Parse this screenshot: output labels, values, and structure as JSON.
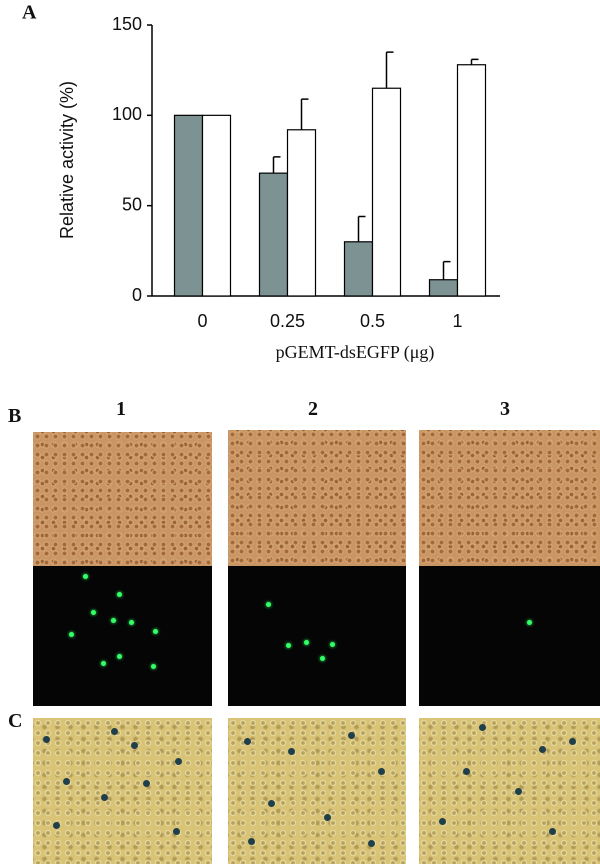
{
  "panel_labels": [
    "A",
    "B",
    "C"
  ],
  "column_labels": [
    "1",
    "2",
    "3"
  ],
  "chart_data": {
    "type": "bar",
    "x_label": "pGEMT-dsEGFP (μg)",
    "y_label": "Relative activity (%)",
    "categories": [
      "0",
      "0.25",
      "0.5",
      "1"
    ],
    "series": [
      {
        "color": "#7d9292",
        "values": [
          100,
          68,
          30,
          9
        ],
        "errors": [
          null,
          9,
          14,
          10
        ]
      },
      {
        "color": "#ffffff",
        "values": [
          100,
          92,
          115,
          128
        ],
        "errors": [
          null,
          17,
          20,
          3
        ]
      }
    ],
    "ylim": [
      0,
      150
    ],
    "yticks": [
      0,
      50,
      100,
      150
    ],
    "grid": false
  }
}
